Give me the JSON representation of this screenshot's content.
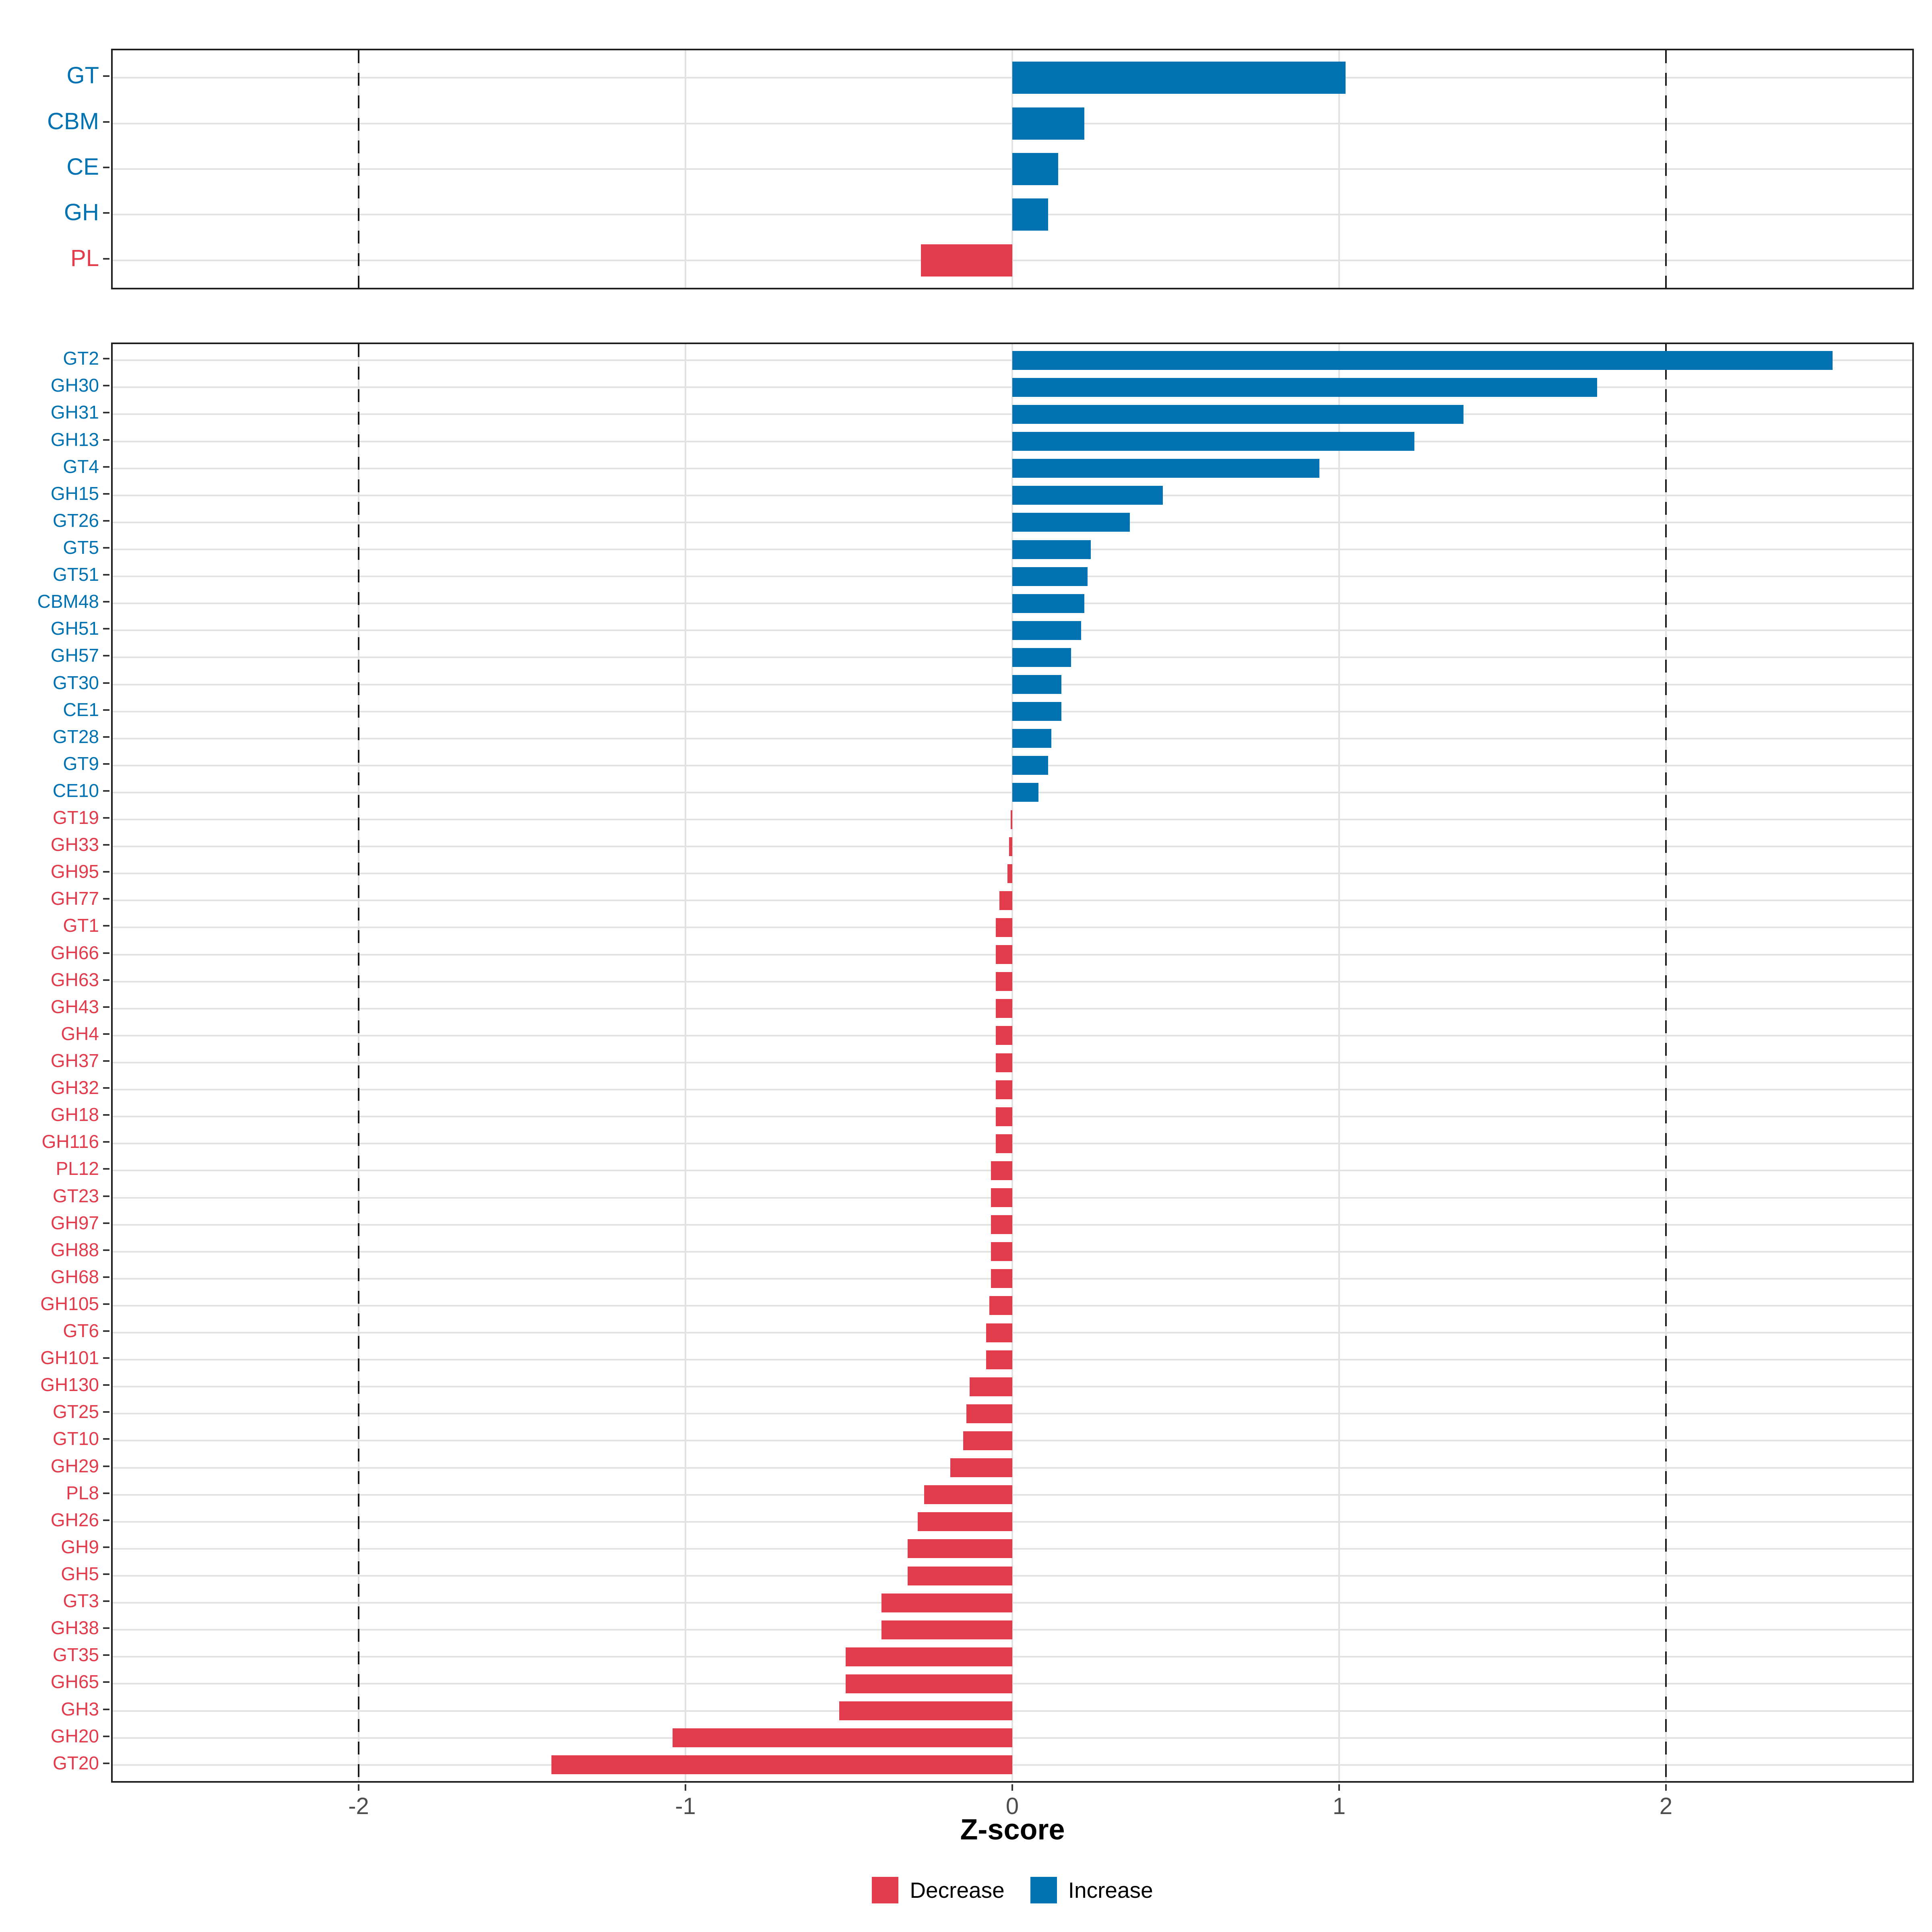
{
  "axis": {
    "title": "Z-score",
    "ticks": [
      -2,
      -1,
      0,
      1,
      2
    ]
  },
  "colors": {
    "increase": "#0072B2",
    "decrease": "#E23B4C",
    "gridline": "#E2E2E2",
    "dashed_line": "#1A1A1A",
    "panel_border": "#1F1F1F",
    "tick_label": "#4D4D4D"
  },
  "legend": {
    "items": [
      {
        "label": "Decrease",
        "color": "#E23B4C"
      },
      {
        "label": "Increase",
        "color": "#0072B2"
      }
    ]
  },
  "chart_data": [
    {
      "id": "top-panel",
      "type": "bar",
      "orientation": "horizontal",
      "title": "",
      "xlabel": "Z-score",
      "xlim": [
        -2.76,
        2.76
      ],
      "xticks": [
        -2,
        -1,
        0,
        1,
        2
      ],
      "dashed_vlines": [
        -2,
        2
      ],
      "grid": "on",
      "legend_position": "bottom",
      "categories": [
        "GT",
        "CBM",
        "CE",
        "GH",
        "PL"
      ],
      "values": [
        1.02,
        0.22,
        0.14,
        0.11,
        -0.28
      ]
    },
    {
      "id": "bottom-panel",
      "type": "bar",
      "orientation": "horizontal",
      "title": "",
      "xlabel": "Z-score",
      "xlim": [
        -2.76,
        2.76
      ],
      "xticks": [
        -2,
        -1,
        0,
        1,
        2
      ],
      "dashed_vlines": [
        -2,
        2
      ],
      "grid": "on",
      "legend_position": "bottom",
      "categories": [
        "GT2",
        "GH30",
        "GH31",
        "GH13",
        "GT4",
        "GH15",
        "GT26",
        "GT5",
        "GT51",
        "CBM48",
        "GH51",
        "GH57",
        "GT30",
        "CE1",
        "GT28",
        "GT9",
        "CE10",
        "GT19",
        "GH33",
        "GH95",
        "GH77",
        "GT1",
        "GH66",
        "GH63",
        "GH43",
        "GH4",
        "GH37",
        "GH32",
        "GH18",
        "GH116",
        "PL12",
        "GT23",
        "GH97",
        "GH88",
        "GH68",
        "GH105",
        "GT6",
        "GH101",
        "GH130",
        "GT25",
        "GT10",
        "GH29",
        "PL8",
        "GH26",
        "GH9",
        "GH5",
        "GT3",
        "GH38",
        "GT35",
        "GH65",
        "GH3",
        "GH20",
        "GT20"
      ],
      "values": [
        2.51,
        1.79,
        1.38,
        1.23,
        0.94,
        0.46,
        0.36,
        0.24,
        0.23,
        0.22,
        0.21,
        0.18,
        0.15,
        0.15,
        0.12,
        0.11,
        0.08,
        -0.005,
        -0.01,
        -0.015,
        -0.04,
        -0.05,
        -0.05,
        -0.05,
        -0.05,
        -0.05,
        -0.05,
        -0.05,
        -0.05,
        -0.05,
        -0.065,
        -0.065,
        -0.065,
        -0.065,
        -0.065,
        -0.07,
        -0.08,
        -0.08,
        -0.13,
        -0.14,
        -0.15,
        -0.19,
        -0.27,
        -0.29,
        -0.32,
        -0.32,
        -0.4,
        -0.4,
        -0.51,
        -0.51,
        -0.53,
        -1.04,
        -1.41
      ]
    }
  ]
}
